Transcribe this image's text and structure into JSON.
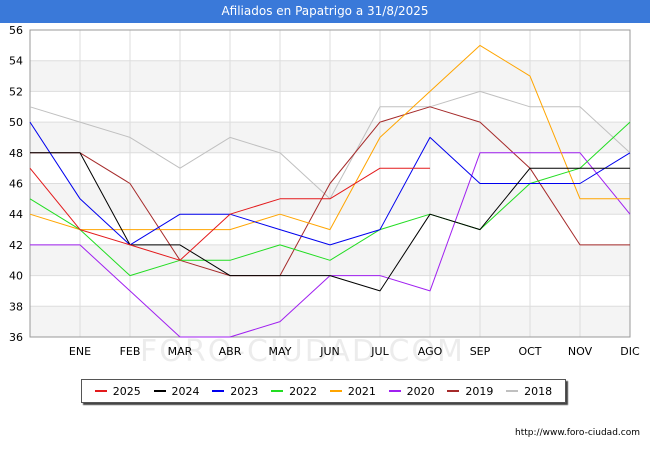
{
  "header": {
    "title": "Afiliados en Papatrigo a 31/8/2025"
  },
  "footer": {
    "url": "http://www.foro-ciudad.com"
  },
  "watermark": {
    "text": "FORO-CIUDAD.COM"
  },
  "chart_data": {
    "type": "line",
    "title": "Afiliados en Papatrigo a 31/8/2025",
    "xlabel": "",
    "ylabel": "",
    "categories": [
      "",
      "ENE",
      "FEB",
      "MAR",
      "ABR",
      "MAY",
      "JUN",
      "JUL",
      "AGO",
      "SEP",
      "OCT",
      "NOV",
      "DIC"
    ],
    "ylim": [
      36,
      56
    ],
    "yticks": [
      36,
      38,
      40,
      42,
      44,
      46,
      48,
      50,
      52,
      54,
      56
    ],
    "grid": true,
    "legend": "bottom",
    "series": [
      {
        "name": "2025",
        "color": "#e31a1c",
        "values": [
          47,
          43,
          42,
          41,
          44,
          45,
          45,
          47,
          47,
          null,
          null,
          null,
          null
        ]
      },
      {
        "name": "2024",
        "color": "#000000",
        "values": [
          48,
          48,
          42,
          42,
          40,
          40,
          40,
          39,
          44,
          43,
          47,
          47,
          47
        ]
      },
      {
        "name": "2023",
        "color": "#0000ee",
        "values": [
          50,
          45,
          42,
          44,
          44,
          43,
          42,
          43,
          49,
          46,
          46,
          46,
          48
        ]
      },
      {
        "name": "2022",
        "color": "#22dd22",
        "values": [
          45,
          43,
          40,
          41,
          41,
          42,
          41,
          43,
          44,
          43,
          46,
          47,
          50
        ]
      },
      {
        "name": "2021",
        "color": "#ffa500",
        "values": [
          44,
          43,
          43,
          43,
          43,
          44,
          43,
          49,
          52,
          55,
          53,
          45,
          45
        ]
      },
      {
        "name": "2020",
        "color": "#a020f0",
        "values": [
          42,
          42,
          39,
          36,
          36,
          37,
          40,
          40,
          39,
          48,
          48,
          48,
          44
        ]
      },
      {
        "name": "2019",
        "color": "#a52a2a",
        "values": [
          48,
          48,
          46,
          41,
          40,
          40,
          46,
          50,
          51,
          50,
          47,
          42,
          42
        ]
      },
      {
        "name": "2018",
        "color": "#c0c0c0",
        "values": [
          51,
          50,
          49,
          47,
          49,
          48,
          45,
          51,
          51,
          52,
          51,
          51,
          48
        ]
      }
    ]
  }
}
